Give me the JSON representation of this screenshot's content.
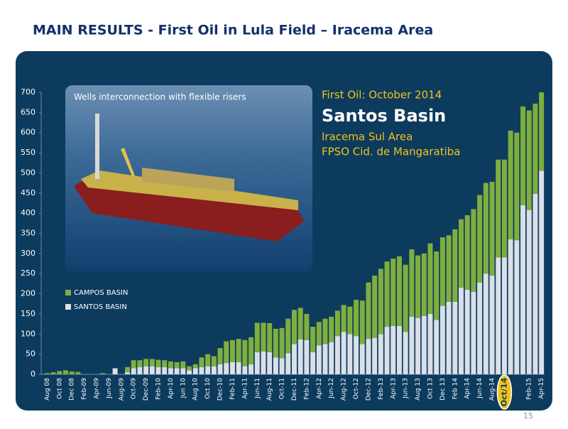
{
  "header": {
    "title": "MAIN RESULTS - First Oil in Lula Field – Iracema Area"
  },
  "page_number": "15",
  "chart_data": {
    "type": "stacked-bar",
    "photo_caption": "Wells interconnection with flexible risers",
    "annotations": [
      "First Oil: October 2014",
      "Santos Basin",
      "Iracema Sul Area",
      "FPSO Cid. de Mangaratiba"
    ],
    "categories": [
      "Aug 08",
      null,
      "Oct 08",
      null,
      "Dec 08",
      null,
      "Feb-09",
      null,
      "Apr-09",
      null,
      "Jun-09",
      null,
      "Aug-09",
      null,
      "Oct-09",
      null,
      "Dec-09",
      null,
      "Feb-10",
      null,
      "Apr-10",
      null,
      "Jun 10",
      null,
      "Aug 10",
      null,
      "Oct 10",
      null,
      "Dec-10",
      null,
      "Feb-11",
      null,
      "Apr-11",
      null,
      "Jun-11",
      null,
      "Aug-11",
      null,
      "Oct-11",
      null,
      "Dec-11",
      null,
      "Feb-12",
      null,
      "Apr-12",
      null,
      "Jun-12",
      null,
      "Aug-12",
      null,
      "Oct-12",
      null,
      "Dec-12",
      null,
      "Feb-13",
      null,
      "Apr-13",
      null,
      "Jun-13",
      null,
      "Aug 13",
      null,
      "Oct 13",
      null,
      "Dec 13",
      null,
      "Feb 14",
      null,
      "Apr-14",
      null,
      "Jun-14",
      null,
      "Aug-14",
      null,
      "Oct/14",
      null,
      null,
      null,
      "Feb-15",
      null,
      "Apr-15"
    ],
    "highlighted_category_index": 74,
    "series": [
      {
        "name": "SANTOS BASIN",
        "color": "#dadfe8",
        "values": [
          0,
          0,
          0,
          0,
          0,
          0,
          0,
          0,
          0,
          0,
          0,
          15,
          0,
          5,
          15,
          18,
          20,
          20,
          18,
          18,
          15,
          15,
          15,
          10,
          15,
          18,
          20,
          20,
          25,
          28,
          30,
          30,
          20,
          25,
          55,
          57,
          55,
          42,
          40,
          52,
          75,
          87,
          85,
          55,
          72,
          75,
          80,
          95,
          105,
          100,
          95,
          75,
          88,
          90,
          100,
          118,
          120,
          120,
          105,
          143,
          140,
          145,
          150,
          135,
          170,
          180,
          180,
          215,
          210,
          205,
          228,
          250,
          245,
          290,
          290,
          335,
          333,
          420,
          408,
          448,
          505
        ]
      },
      {
        "name": "CAMPOS BASIN",
        "color": "#7fae3f",
        "values": [
          3,
          5,
          8,
          10,
          7,
          6,
          0,
          0,
          0,
          3,
          0,
          0,
          0,
          13,
          20,
          17,
          18,
          18,
          18,
          17,
          17,
          15,
          17,
          10,
          10,
          24,
          30,
          25,
          40,
          54,
          55,
          58,
          65,
          67,
          73,
          71,
          72,
          71,
          75,
          86,
          85,
          78,
          65,
          63,
          58,
          63,
          63,
          63,
          67,
          68,
          90,
          108,
          140,
          155,
          162,
          162,
          167,
          173,
          167,
          167,
          155,
          155,
          175,
          170,
          170,
          165,
          180,
          170,
          185,
          205,
          217,
          225,
          233,
          243,
          243,
          270,
          267,
          245,
          247,
          224,
          195
        ]
      }
    ],
    "ylim": [
      0,
      700
    ],
    "yticks": [
      0,
      50,
      100,
      150,
      200,
      250,
      300,
      350,
      400,
      450,
      500,
      550,
      600,
      650,
      700
    ],
    "legend": "lower-left"
  }
}
